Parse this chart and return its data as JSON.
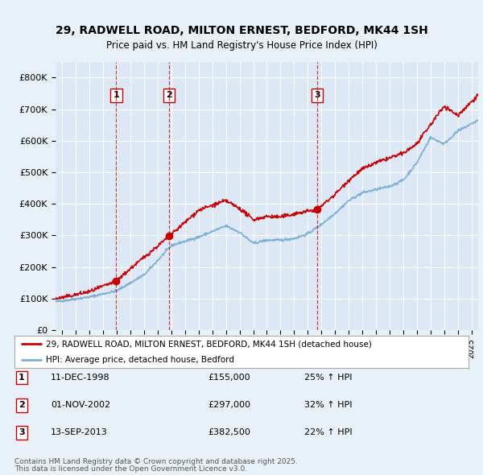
{
  "title": "29, RADWELL ROAD, MILTON ERNEST, BEDFORD, MK44 1SH",
  "subtitle": "Price paid vs. HM Land Registry's House Price Index (HPI)",
  "bg_color": "#e8f0f8",
  "plot_bg_color": "#dce8f5",
  "grid_color": "#ffffff",
  "red_line_color": "#cc0000",
  "blue_line_color": "#7ab0d4",
  "ylim": [
    0,
    850000
  ],
  "yticks": [
    0,
    100000,
    200000,
    300000,
    400000,
    500000,
    600000,
    700000,
    800000
  ],
  "ytick_labels": [
    "£0",
    "£100K",
    "£200K",
    "£300K",
    "£400K",
    "£500K",
    "£600K",
    "£700K",
    "£800K"
  ],
  "sales": [
    {
      "num": 1,
      "date_str": "11-DEC-1998",
      "price": 155000,
      "pct": "25%",
      "x_year": 1998.95
    },
    {
      "num": 2,
      "date_str": "01-NOV-2002",
      "price": 297000,
      "pct": "32%",
      "x_year": 2002.84
    },
    {
      "num": 3,
      "date_str": "13-SEP-2013",
      "price": 382500,
      "pct": "22%",
      "x_year": 2013.71
    }
  ],
  "legend_label_red": "29, RADWELL ROAD, MILTON ERNEST, BEDFORD, MK44 1SH (detached house)",
  "legend_label_blue": "HPI: Average price, detached house, Bedford",
  "footer1": "Contains HM Land Registry data © Crown copyright and database right 2025.",
  "footer2": "This data is licensed under the Open Government Licence v3.0.",
  "xlim_start": 1994.5,
  "xlim_end": 2025.5,
  "hpi_control_x": [
    1994.5,
    1995,
    1997,
    1999,
    2001,
    2003,
    2005,
    2007,
    2008,
    2009,
    2010,
    2011,
    2012,
    2013,
    2014,
    2015,
    2016,
    2017,
    2018,
    2019,
    2020,
    2021,
    2022,
    2023,
    2024,
    2025.5
  ],
  "hpi_control_y": [
    90000,
    93000,
    105000,
    125000,
    175000,
    268000,
    295000,
    330000,
    310000,
    275000,
    285000,
    285000,
    290000,
    305000,
    335000,
    370000,
    410000,
    435000,
    445000,
    455000,
    475000,
    530000,
    610000,
    590000,
    630000,
    665000
  ],
  "red_control_x": [
    1994.5,
    1995,
    1997,
    1998.95,
    2000,
    2002.84,
    2005,
    2007,
    2008,
    2009,
    2010,
    2011,
    2012,
    2013.71,
    2015,
    2016,
    2017,
    2018,
    2019,
    2020,
    2021,
    2022,
    2023,
    2024,
    2025.5
  ],
  "red_control_y": [
    100000,
    103000,
    122000,
    155000,
    195000,
    297000,
    380000,
    410000,
    385000,
    350000,
    360000,
    358000,
    368000,
    382500,
    430000,
    475000,
    510000,
    530000,
    545000,
    560000,
    590000,
    650000,
    710000,
    680000,
    745000
  ]
}
